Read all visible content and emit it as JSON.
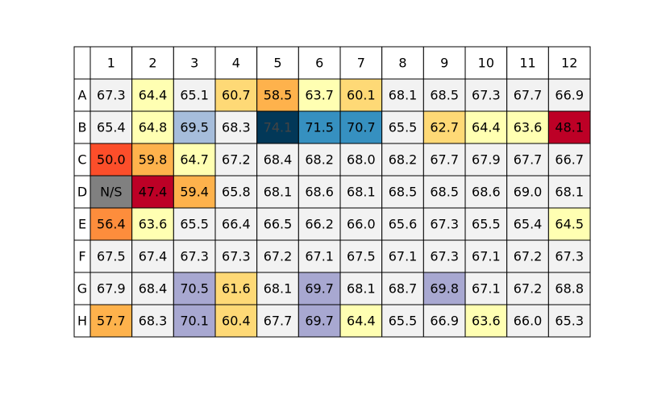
{
  "chart_data": {
    "type": "heatmap",
    "columns": [
      "1",
      "2",
      "3",
      "4",
      "5",
      "6",
      "7",
      "8",
      "9",
      "10",
      "11",
      "12"
    ],
    "rows": [
      "A",
      "B",
      "C",
      "D",
      "E",
      "F",
      "G",
      "H"
    ],
    "cells": [
      [
        {
          "value": "67.3",
          "color": "#f2f2f2"
        },
        {
          "value": "64.4",
          "color": "#ffffb2"
        },
        {
          "value": "65.1",
          "color": "#f2f2f2"
        },
        {
          "value": "60.7",
          "color": "#fed976"
        },
        {
          "value": "58.5",
          "color": "#feb24c"
        },
        {
          "value": "63.7",
          "color": "#ffffb2"
        },
        {
          "value": "60.1",
          "color": "#fed976"
        },
        {
          "value": "68.1",
          "color": "#f2f2f2"
        },
        {
          "value": "68.5",
          "color": "#f2f2f2"
        },
        {
          "value": "67.3",
          "color": "#f2f2f2"
        },
        {
          "value": "67.7",
          "color": "#f2f2f2"
        },
        {
          "value": "66.9",
          "color": "#f2f2f2"
        }
      ],
      [
        {
          "value": "65.4",
          "color": "#f2f2f2"
        },
        {
          "value": "64.8",
          "color": "#ffffb2"
        },
        {
          "value": "69.5",
          "color": "#a6bddb"
        },
        {
          "value": "68.3",
          "color": "#f2f2f2"
        },
        {
          "value": "74.1",
          "color": "#023858"
        },
        {
          "value": "71.5",
          "color": "#3690c0"
        },
        {
          "value": "70.7",
          "color": "#3690c0"
        },
        {
          "value": "65.5",
          "color": "#f2f2f2"
        },
        {
          "value": "62.7",
          "color": "#fed976"
        },
        {
          "value": "64.4",
          "color": "#ffffb2"
        },
        {
          "value": "63.6",
          "color": "#ffffb2"
        },
        {
          "value": "48.1",
          "color": "#bd0026"
        }
      ],
      [
        {
          "value": "50.0",
          "color": "#fc4e2a"
        },
        {
          "value": "59.8",
          "color": "#feb24c"
        },
        {
          "value": "64.7",
          "color": "#ffffb2"
        },
        {
          "value": "67.2",
          "color": "#f2f2f2"
        },
        {
          "value": "68.4",
          "color": "#f2f2f2"
        },
        {
          "value": "68.2",
          "color": "#f2f2f2"
        },
        {
          "value": "68.0",
          "color": "#f2f2f2"
        },
        {
          "value": "68.2",
          "color": "#f2f2f2"
        },
        {
          "value": "67.7",
          "color": "#f2f2f2"
        },
        {
          "value": "67.9",
          "color": "#f2f2f2"
        },
        {
          "value": "67.7",
          "color": "#f2f2f2"
        },
        {
          "value": "66.7",
          "color": "#f2f2f2"
        }
      ],
      [
        {
          "value": "N/S",
          "color": "#808080"
        },
        {
          "value": "47.4",
          "color": "#bd0026"
        },
        {
          "value": "59.4",
          "color": "#feb24c"
        },
        {
          "value": "65.8",
          "color": "#f2f2f2"
        },
        {
          "value": "68.1",
          "color": "#f2f2f2"
        },
        {
          "value": "68.6",
          "color": "#f2f2f2"
        },
        {
          "value": "68.1",
          "color": "#f2f2f2"
        },
        {
          "value": "68.5",
          "color": "#f2f2f2"
        },
        {
          "value": "68.5",
          "color": "#f2f2f2"
        },
        {
          "value": "68.6",
          "color": "#f2f2f2"
        },
        {
          "value": "69.0",
          "color": "#f2f2f2"
        },
        {
          "value": "68.1",
          "color": "#f2f2f2"
        }
      ],
      [
        {
          "value": "56.4",
          "color": "#fd8d3c"
        },
        {
          "value": "63.6",
          "color": "#ffffb2"
        },
        {
          "value": "65.5",
          "color": "#f2f2f2"
        },
        {
          "value": "66.4",
          "color": "#f2f2f2"
        },
        {
          "value": "66.5",
          "color": "#f2f2f2"
        },
        {
          "value": "66.2",
          "color": "#f2f2f2"
        },
        {
          "value": "66.0",
          "color": "#f2f2f2"
        },
        {
          "value": "65.6",
          "color": "#f2f2f2"
        },
        {
          "value": "67.3",
          "color": "#f2f2f2"
        },
        {
          "value": "65.5",
          "color": "#f2f2f2"
        },
        {
          "value": "65.4",
          "color": "#f2f2f2"
        },
        {
          "value": "64.5",
          "color": "#ffffb2"
        }
      ],
      [
        {
          "value": "67.5",
          "color": "#f2f2f2"
        },
        {
          "value": "67.4",
          "color": "#f2f2f2"
        },
        {
          "value": "67.3",
          "color": "#f2f2f2"
        },
        {
          "value": "67.3",
          "color": "#f2f2f2"
        },
        {
          "value": "67.2",
          "color": "#f2f2f2"
        },
        {
          "value": "67.1",
          "color": "#f2f2f2"
        },
        {
          "value": "67.5",
          "color": "#f2f2f2"
        },
        {
          "value": "67.1",
          "color": "#f2f2f2"
        },
        {
          "value": "67.3",
          "color": "#f2f2f2"
        },
        {
          "value": "67.1",
          "color": "#f2f2f2"
        },
        {
          "value": "67.2",
          "color": "#f2f2f2"
        },
        {
          "value": "67.3",
          "color": "#f2f2f2"
        }
      ],
      [
        {
          "value": "67.9",
          "color": "#f2f2f2"
        },
        {
          "value": "68.4",
          "color": "#f2f2f2"
        },
        {
          "value": "70.5",
          "color": "#a8a8d1"
        },
        {
          "value": "61.6",
          "color": "#fed976"
        },
        {
          "value": "68.1",
          "color": "#f2f2f2"
        },
        {
          "value": "69.7",
          "color": "#a8a8d1"
        },
        {
          "value": "68.1",
          "color": "#f2f2f2"
        },
        {
          "value": "68.7",
          "color": "#f2f2f2"
        },
        {
          "value": "69.8",
          "color": "#a8a8d1"
        },
        {
          "value": "67.1",
          "color": "#f2f2f2"
        },
        {
          "value": "67.2",
          "color": "#f2f2f2"
        },
        {
          "value": "68.8",
          "color": "#f2f2f2"
        }
      ],
      [
        {
          "value": "57.7",
          "color": "#feb24c"
        },
        {
          "value": "68.3",
          "color": "#f2f2f2"
        },
        {
          "value": "70.1",
          "color": "#a8a8d1"
        },
        {
          "value": "60.4",
          "color": "#fed976"
        },
        {
          "value": "67.7",
          "color": "#f2f2f2"
        },
        {
          "value": "69.7",
          "color": "#a8a8d1"
        },
        {
          "value": "64.4",
          "color": "#ffffb2"
        },
        {
          "value": "65.5",
          "color": "#f2f2f2"
        },
        {
          "value": "66.9",
          "color": "#f2f2f2"
        },
        {
          "value": "63.6",
          "color": "#ffffb2"
        },
        {
          "value": "66.0",
          "color": "#f2f2f2"
        },
        {
          "value": "65.3",
          "color": "#f2f2f2"
        }
      ]
    ],
    "dark_text_cells": [
      "B5"
    ],
    "header_color": "#f2f2f2"
  }
}
